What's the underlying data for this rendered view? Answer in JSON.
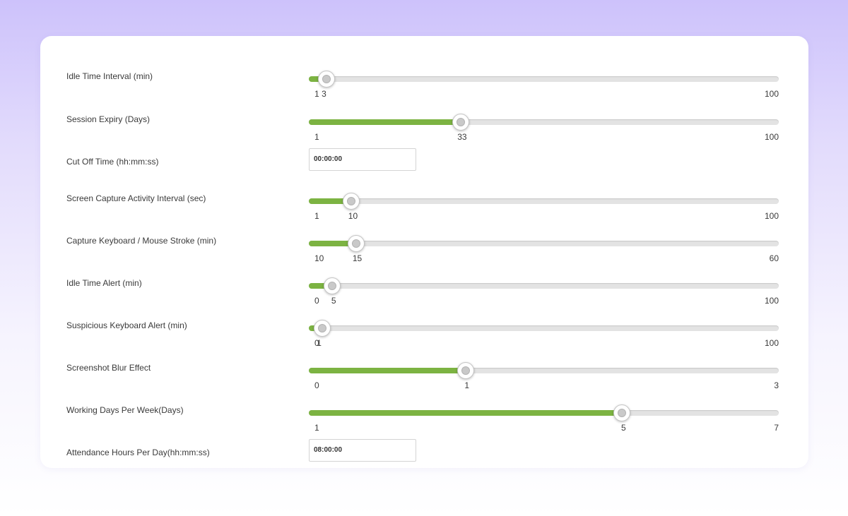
{
  "settings": [
    {
      "type": "slider",
      "label": "Idle Time Interval (min)",
      "min": 1,
      "max": 100,
      "value": 3,
      "min_label": "1",
      "max_label": "100",
      "value_label": "3"
    },
    {
      "type": "slider",
      "label": "Session Expiry (Days)",
      "min": 1,
      "max": 100,
      "value": 33,
      "min_label": "1",
      "max_label": "100",
      "value_label": "33"
    },
    {
      "type": "text",
      "label": "Cut Off Time (hh:mm:ss)",
      "value": "00:00:00"
    },
    {
      "type": "slider",
      "label": "Screen Capture Activity Interval (sec)",
      "min": 1,
      "max": 100,
      "value": 10,
      "min_label": "1",
      "max_label": "100",
      "value_label": "10"
    },
    {
      "type": "slider",
      "label": "Capture Keyboard / Mouse Stroke (min)",
      "min": 10,
      "max": 60,
      "value": 15,
      "min_label": "10",
      "max_label": "60",
      "value_label": "15"
    },
    {
      "type": "slider",
      "label": "Idle Time Alert (min)",
      "min": 0,
      "max": 100,
      "value": 5,
      "min_label": "0",
      "max_label": "100",
      "value_label": "5"
    },
    {
      "type": "slider",
      "label": "Suspicious Keyboard Alert (min)",
      "min": 0,
      "max": 100,
      "value": 1,
      "min_label": "0",
      "max_label": "100",
      "value_label": "1"
    },
    {
      "type": "slider",
      "label": "Screenshot Blur Effect",
      "min": 0,
      "max": 3,
      "value": 1,
      "min_label": "0",
      "max_label": "3",
      "value_label": "1"
    },
    {
      "type": "slider",
      "label": "Working Days Per Week(Days)",
      "min": 1,
      "max": 7,
      "value": 5,
      "min_label": "1",
      "max_label": "7",
      "value_label": "5"
    },
    {
      "type": "text",
      "label": "Attendance Hours Per Day(hh:mm:ss)",
      "value": "08:00:00"
    }
  ],
  "colors": {
    "fill": "#7cb342",
    "track": "#e3e3e3",
    "background_top": "#cdc2fb"
  }
}
